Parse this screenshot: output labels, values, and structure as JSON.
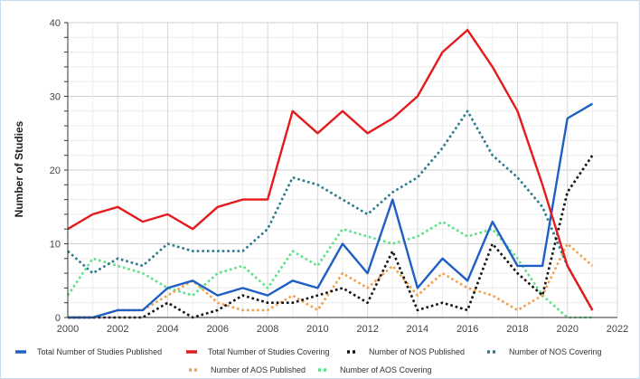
{
  "chart_data": {
    "type": "line",
    "title": "",
    "xlabel": "",
    "ylabel": "Number of Studies",
    "xlim": [
      2000,
      2022
    ],
    "ylim": [
      0,
      40
    ],
    "x_ticks": [
      2000,
      2002,
      2004,
      2006,
      2008,
      2010,
      2012,
      2014,
      2016,
      2018,
      2020,
      2022
    ],
    "y_ticks": [
      0,
      10,
      20,
      30,
      40
    ],
    "grid": true,
    "legend_position": "bottom",
    "x": [
      2000,
      2001,
      2002,
      2003,
      2004,
      2005,
      2006,
      2007,
      2008,
      2009,
      2010,
      2011,
      2012,
      2013,
      2014,
      2015,
      2016,
      2017,
      2018,
      2019,
      2020,
      2021
    ],
    "series": [
      {
        "name": "Total Number of Studies Published",
        "color": "#1f5fc4",
        "style": "solid",
        "values": [
          0,
          0,
          1,
          1,
          4,
          5,
          3,
          4,
          3,
          5,
          4,
          10,
          6,
          16,
          4,
          8,
          5,
          13,
          7,
          7,
          27,
          29
        ]
      },
      {
        "name": "Total Number of Studies Covering",
        "color": "#e41a1c",
        "style": "solid",
        "values": [
          12,
          14,
          15,
          13,
          14,
          12,
          15,
          16,
          16,
          28,
          25,
          28,
          25,
          27,
          30,
          36,
          39,
          34,
          28,
          18,
          7,
          1
        ]
      },
      {
        "name": "Number of NOS Published",
        "color": "#111111",
        "style": "dotted",
        "values": [
          0,
          0,
          0,
          0,
          2,
          0,
          1,
          3,
          2,
          2,
          3,
          4,
          2,
          9,
          1,
          2,
          1,
          10,
          6,
          3,
          17,
          22
        ]
      },
      {
        "name": "Number of NOS Covering",
        "color": "#2a7a8c",
        "style": "dotted",
        "values": [
          9,
          6,
          8,
          7,
          10,
          9,
          9,
          9,
          12,
          19,
          18,
          16,
          14,
          17,
          19,
          23,
          28,
          22,
          19,
          15,
          7,
          1
        ]
      },
      {
        "name": "Number of AOS Published",
        "color": "#f0a050",
        "style": "dotted",
        "values": [
          0,
          0,
          1,
          1,
          3,
          5,
          2,
          1,
          1,
          3,
          1,
          6,
          4,
          7,
          3,
          6,
          4,
          3,
          1,
          3,
          10,
          7
        ]
      },
      {
        "name": "Number of AOS Covering",
        "color": "#5ee08a",
        "style": "dotted",
        "values": [
          3,
          8,
          7,
          6,
          4,
          3,
          6,
          7,
          4,
          9,
          7,
          12,
          11,
          10,
          11,
          13,
          11,
          12,
          8,
          3,
          0,
          0
        ]
      }
    ]
  }
}
